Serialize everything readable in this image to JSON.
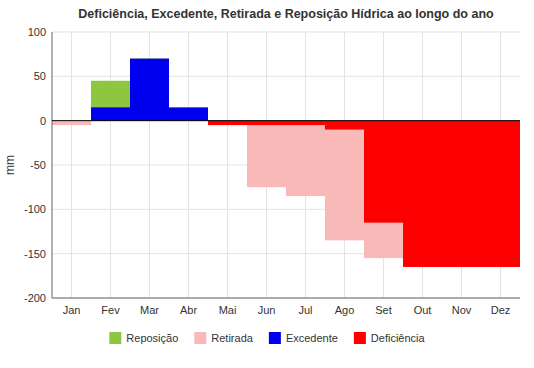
{
  "chart_data": {
    "type": "bar",
    "title": "Deficiência, Excedente, Retirada e Reposição Hídrica ao longo do ano",
    "y_label": "mm",
    "categories": [
      "Jan",
      "Fev",
      "Mar",
      "Abr",
      "Mai",
      "Jun",
      "Jul",
      "Ago",
      "Set",
      "Out",
      "Nov",
      "Dez"
    ],
    "series": [
      {
        "name": "Reposição",
        "color": "#8dc63f",
        "values": [
          0,
          45,
          70,
          0,
          0,
          0,
          0,
          0,
          0,
          0,
          0,
          0
        ]
      },
      {
        "name": "Retirada",
        "color": "#f9b9b9",
        "values": [
          -5,
          0,
          0,
          0,
          0,
          -75,
          -85,
          -135,
          -155,
          -155,
          -155,
          -155
        ]
      },
      {
        "name": "Excedente",
        "color": "#0000ee",
        "values": [
          0,
          15,
          70,
          15,
          0,
          0,
          0,
          0,
          0,
          0,
          0,
          0
        ]
      },
      {
        "name": "Deficiência",
        "color": "#ff0000",
        "values": [
          0,
          0,
          0,
          0,
          -5,
          -5,
          -5,
          -10,
          -115,
          -165,
          -165,
          -165
        ]
      }
    ],
    "ylim": [
      -200,
      100
    ],
    "yticks": [
      -200,
      -150,
      -100,
      -50,
      0,
      50,
      100
    ],
    "grid": true,
    "legend": "bottom"
  }
}
